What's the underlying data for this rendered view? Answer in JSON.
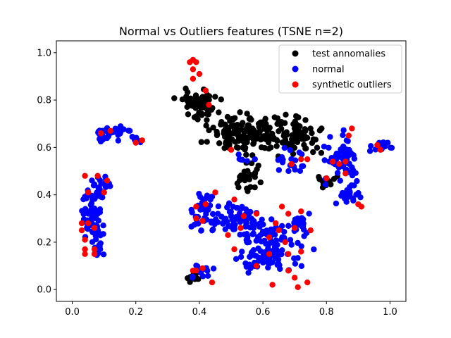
{
  "chart_data": {
    "type": "scatter",
    "title": "Normal vs Outliers features (TSNE n=2)",
    "xlabel": "",
    "ylabel": "",
    "xlim": [
      -0.05,
      1.05
    ],
    "ylim": [
      -0.05,
      1.05
    ],
    "xticks": [
      "0.0",
      "0.2",
      "0.4",
      "0.6",
      "0.8",
      "1.0"
    ],
    "yticks": [
      "0.0",
      "0.2",
      "0.4",
      "0.6",
      "0.8",
      "1.0"
    ],
    "grid": false,
    "legend_position": "top-right",
    "series": [
      {
        "name": "test annomalies",
        "color": "#000000",
        "clusters": [
          {
            "cx": 0.4,
            "cy": 0.78,
            "rx": 0.05,
            "ry": 0.05,
            "n": 60
          },
          {
            "cx": 0.5,
            "cy": 0.66,
            "rx": 0.06,
            "ry": 0.06,
            "n": 70
          },
          {
            "cx": 0.62,
            "cy": 0.65,
            "rx": 0.08,
            "ry": 0.06,
            "n": 90
          },
          {
            "cx": 0.72,
            "cy": 0.65,
            "rx": 0.05,
            "ry": 0.06,
            "n": 50
          },
          {
            "cx": 0.55,
            "cy": 0.47,
            "rx": 0.04,
            "ry": 0.05,
            "n": 25
          },
          {
            "cx": 0.79,
            "cy": 0.45,
            "rx": 0.03,
            "ry": 0.03,
            "n": 12
          },
          {
            "cx": 0.38,
            "cy": 0.05,
            "rx": 0.02,
            "ry": 0.02,
            "n": 8
          }
        ]
      },
      {
        "name": "normal",
        "color": "#0000ff",
        "clusters": [
          {
            "cx": 0.06,
            "cy": 0.3,
            "rx": 0.025,
            "ry": 0.1,
            "n": 50
          },
          {
            "cx": 0.09,
            "cy": 0.43,
            "rx": 0.03,
            "ry": 0.04,
            "n": 25
          },
          {
            "cx": 0.08,
            "cy": 0.2,
            "rx": 0.02,
            "ry": 0.06,
            "n": 20
          },
          {
            "cx": 0.12,
            "cy": 0.66,
            "rx": 0.05,
            "ry": 0.025,
            "n": 35
          },
          {
            "cx": 0.2,
            "cy": 0.63,
            "rx": 0.02,
            "ry": 0.015,
            "n": 8
          },
          {
            "cx": 0.42,
            "cy": 0.33,
            "rx": 0.03,
            "ry": 0.08,
            "n": 45
          },
          {
            "cx": 0.53,
            "cy": 0.3,
            "rx": 0.05,
            "ry": 0.06,
            "n": 50
          },
          {
            "cx": 0.62,
            "cy": 0.18,
            "rx": 0.09,
            "ry": 0.1,
            "n": 120
          },
          {
            "cx": 0.72,
            "cy": 0.28,
            "rx": 0.03,
            "ry": 0.04,
            "n": 20
          },
          {
            "cx": 0.41,
            "cy": 0.08,
            "rx": 0.03,
            "ry": 0.025,
            "n": 15
          },
          {
            "cx": 0.85,
            "cy": 0.55,
            "rx": 0.05,
            "ry": 0.07,
            "n": 60
          },
          {
            "cx": 0.87,
            "cy": 0.4,
            "rx": 0.03,
            "ry": 0.04,
            "n": 25
          },
          {
            "cx": 0.97,
            "cy": 0.6,
            "rx": 0.03,
            "ry": 0.02,
            "n": 20
          },
          {
            "cx": 0.7,
            "cy": 0.55,
            "rx": 0.04,
            "ry": 0.04,
            "n": 20
          },
          {
            "cx": 0.55,
            "cy": 0.55,
            "rx": 0.02,
            "ry": 0.02,
            "n": 6
          }
        ]
      },
      {
        "name": "synthetic outliers",
        "color": "#ff0000",
        "points": [
          [
            0.04,
            0.48
          ],
          [
            0.05,
            0.41
          ],
          [
            0.05,
            0.28
          ],
          [
            0.03,
            0.28
          ],
          [
            0.03,
            0.25
          ],
          [
            0.04,
            0.21
          ],
          [
            0.04,
            0.17
          ],
          [
            0.04,
            0.15
          ],
          [
            0.07,
            0.17
          ],
          [
            0.07,
            0.15
          ],
          [
            0.07,
            0.26
          ],
          [
            0.08,
            0.48
          ],
          [
            0.1,
            0.41
          ],
          [
            0.11,
            0.46
          ],
          [
            0.09,
            0.66
          ],
          [
            0.12,
            0.67
          ],
          [
            0.2,
            0.62
          ],
          [
            0.22,
            0.63
          ],
          [
            0.38,
            0.97
          ],
          [
            0.39,
            0.96
          ],
          [
            0.37,
            0.96
          ],
          [
            0.38,
            0.93
          ],
          [
            0.4,
            0.91
          ],
          [
            0.38,
            0.89
          ],
          [
            0.42,
            0.84
          ],
          [
            0.43,
            0.78
          ],
          [
            0.39,
            0.35
          ],
          [
            0.42,
            0.36
          ],
          [
            0.39,
            0.3
          ],
          [
            0.41,
            0.29
          ],
          [
            0.45,
            0.41
          ],
          [
            0.5,
            0.59
          ],
          [
            0.51,
            0.38
          ],
          [
            0.49,
            0.23
          ],
          [
            0.51,
            0.17
          ],
          [
            0.53,
            0.26
          ],
          [
            0.54,
            0.31
          ],
          [
            0.58,
            0.32
          ],
          [
            0.58,
            0.1
          ],
          [
            0.62,
            0.22
          ],
          [
            0.64,
            0.28
          ],
          [
            0.65,
            0.25
          ],
          [
            0.62,
            0.15
          ],
          [
            0.63,
            0.02
          ],
          [
            0.67,
            0.2
          ],
          [
            0.68,
            0.15
          ],
          [
            0.68,
            0.08
          ],
          [
            0.7,
            0.05
          ],
          [
            0.71,
            0.01
          ],
          [
            0.72,
            0.16
          ],
          [
            0.75,
            0.25
          ],
          [
            0.72,
            0.33
          ],
          [
            0.7,
            0.26
          ],
          [
            0.74,
            0.03
          ],
          [
            0.69,
            0.53
          ],
          [
            0.72,
            0.55
          ],
          [
            0.74,
            0.55
          ],
          [
            0.8,
            0.47
          ],
          [
            0.82,
            0.54
          ],
          [
            0.84,
            0.53
          ],
          [
            0.86,
            0.49
          ],
          [
            0.87,
            0.65
          ],
          [
            0.88,
            0.68
          ],
          [
            0.9,
            0.36
          ],
          [
            0.91,
            0.35
          ],
          [
            0.96,
            0.61
          ],
          [
            0.97,
            0.59
          ],
          [
            0.86,
            0.54
          ],
          [
            0.44,
            0.03
          ],
          [
            0.41,
            0.09
          ],
          [
            0.38,
            0.08
          ],
          [
            0.39,
            0.08
          ],
          [
            0.66,
            0.35
          ],
          [
            0.68,
            0.32
          ]
        ]
      }
    ]
  }
}
